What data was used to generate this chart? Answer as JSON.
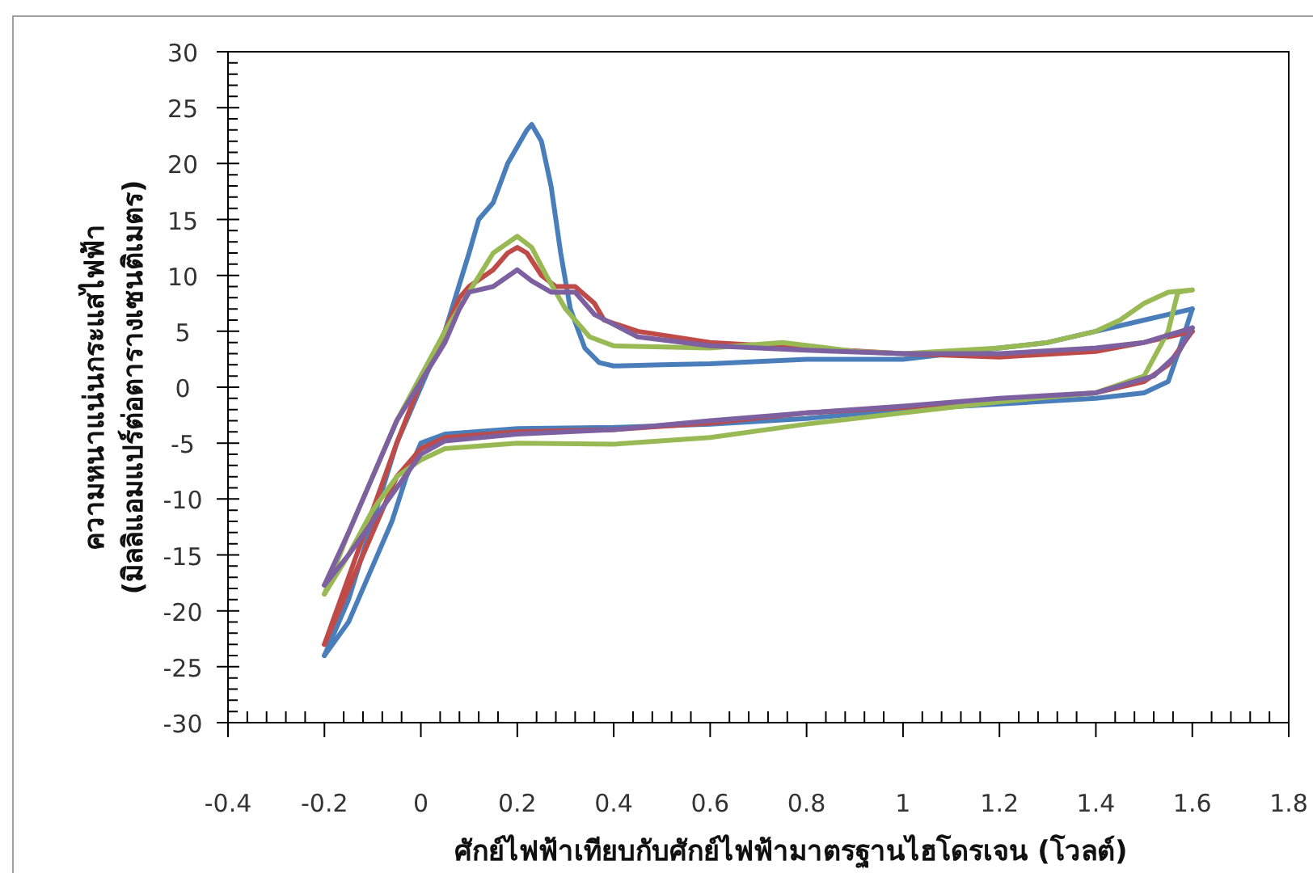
{
  "chart_data": {
    "type": "line",
    "xlabel": "ศักย์ไฟฟ้าเทียบกับศักย์ไฟฟ้ามาตรฐานไฮโดรเจน (โวลต์)",
    "ylabel": "ความหนาแน่นกระแสไฟฟ้า (มิลลิแอมแปร์ต่อตารางเซนติเมตร)",
    "xlim": [
      -0.4,
      1.8
    ],
    "xticks": [
      -0.4,
      -0.2,
      0,
      0.2,
      0.4,
      0.6,
      0.8,
      1,
      1.2,
      1.4,
      1.6,
      1.8
    ],
    "ylim": [
      -30,
      30
    ],
    "yticks": [
      -30,
      -25,
      -20,
      -15,
      -10,
      -5,
      0,
      5,
      10,
      15,
      20,
      25,
      30
    ],
    "grid": false,
    "marker": "none",
    "line_style": "solid",
    "series": [
      {
        "color": "#4a7ebb",
        "x": [
          -0.2,
          -0.15,
          -0.1,
          -0.05,
          0,
          0.05,
          0.1,
          0.12,
          0.15,
          0.18,
          0.2,
          0.22,
          0.23,
          0.25,
          0.27,
          0.29,
          0.31,
          0.34,
          0.37,
          0.4,
          0.5,
          0.6,
          0.8,
          1.0,
          1.1,
          1.2,
          1.3,
          1.4,
          1.5,
          1.6
        ],
        "values": [
          -24,
          -19,
          -12,
          -5,
          0,
          5,
          12,
          15,
          16.5,
          20,
          21.5,
          23,
          23.5,
          22,
          18,
          12,
          7,
          3.5,
          2.2,
          1.9,
          2,
          2.1,
          2.5,
          2.5,
          3,
          3.5,
          4,
          5,
          6,
          7
        ]
      },
      {
        "color": "#4a7ebb",
        "x": [
          -0.2,
          -0.15,
          -0.1,
          -0.06,
          -0.03,
          0,
          0.05,
          0.2,
          0.4,
          0.6,
          0.8,
          1.0,
          1.2,
          1.4,
          1.5,
          1.55,
          1.57,
          1.6
        ],
        "values": [
          -24,
          -21,
          -16,
          -12,
          -8,
          -5,
          -4.2,
          -3.7,
          -3.6,
          -3.3,
          -2.8,
          -2,
          -1.5,
          -1,
          -0.5,
          0.5,
          3,
          7
        ]
      },
      {
        "color": "#be4b48",
        "x": [
          -0.2,
          -0.15,
          -0.1,
          -0.05,
          0,
          0.05,
          0.08,
          0.1,
          0.15,
          0.18,
          0.2,
          0.22,
          0.25,
          0.28,
          0.32,
          0.36,
          0.38,
          0.45,
          0.6,
          0.8,
          1.0,
          1.2,
          1.4,
          1.5,
          1.55,
          1.6
        ],
        "values": [
          -23,
          -17,
          -11,
          -5,
          0.5,
          5,
          8,
          9,
          10.5,
          12,
          12.5,
          12,
          10,
          9,
          9,
          7.5,
          6,
          5,
          4,
          3.5,
          3,
          2.7,
          3.2,
          4,
          4.5,
          5
        ]
      },
      {
        "color": "#be4b48",
        "x": [
          -0.2,
          -0.15,
          -0.1,
          -0.05,
          0,
          0.05,
          0.2,
          0.4,
          0.6,
          0.8,
          1.0,
          1.2,
          1.4,
          1.5,
          1.55,
          1.6
        ],
        "values": [
          -23,
          -18,
          -13,
          -8,
          -5.5,
          -4.5,
          -4,
          -3.8,
          -3.2,
          -2.3,
          -1.8,
          -1.2,
          -0.5,
          0.5,
          2,
          5
        ]
      },
      {
        "color": "#98b954",
        "x": [
          -0.2,
          -0.15,
          -0.1,
          -0.05,
          0,
          0.05,
          0.1,
          0.15,
          0.2,
          0.23,
          0.26,
          0.3,
          0.35,
          0.4,
          0.6,
          0.75,
          0.9,
          1.0,
          1.2,
          1.3,
          1.4,
          1.45,
          1.5,
          1.55,
          1.6
        ],
        "values": [
          -18.5,
          -13,
          -8,
          -3,
          1,
          5,
          8.5,
          12,
          13.5,
          12.5,
          10,
          7,
          4.5,
          3.7,
          3.5,
          4,
          3.2,
          3,
          3.5,
          4,
          5,
          6,
          7.5,
          8.5,
          8.7
        ]
      },
      {
        "color": "#98b954",
        "x": [
          -0.2,
          -0.15,
          -0.1,
          -0.05,
          0,
          0.05,
          0.2,
          0.4,
          0.6,
          0.8,
          1.0,
          1.2,
          1.4,
          1.5,
          1.55,
          1.57,
          1.6
        ],
        "values": [
          -18.5,
          -15,
          -11,
          -8,
          -6.5,
          -5.5,
          -5,
          -5.1,
          -4.5,
          -3.3,
          -2.3,
          -1.3,
          -0.5,
          1,
          5,
          8.5,
          8.7
        ]
      },
      {
        "color": "#7d60a0",
        "x": [
          -0.2,
          -0.15,
          -0.1,
          -0.05,
          0,
          0.05,
          0.08,
          0.1,
          0.15,
          0.2,
          0.23,
          0.27,
          0.32,
          0.36,
          0.45,
          0.6,
          0.8,
          1.0,
          1.2,
          1.4,
          1.5,
          1.6
        ],
        "values": [
          -17.7,
          -13,
          -8,
          -3,
          0.5,
          4,
          7,
          8.5,
          9,
          10.5,
          9.5,
          8.5,
          8.5,
          6.5,
          4.5,
          3.7,
          3.3,
          3,
          3,
          3.5,
          4,
          5.3
        ]
      },
      {
        "color": "#7d60a0",
        "x": [
          -0.2,
          -0.15,
          -0.1,
          -0.05,
          0,
          0.05,
          0.2,
          0.4,
          0.6,
          0.8,
          1.0,
          1.2,
          1.4,
          1.52,
          1.57,
          1.6
        ],
        "values": [
          -17.7,
          -15,
          -12,
          -9,
          -6,
          -4.8,
          -4.2,
          -3.8,
          -3,
          -2.3,
          -1.7,
          -1,
          -0.5,
          1,
          3,
          5.3
        ]
      }
    ]
  }
}
